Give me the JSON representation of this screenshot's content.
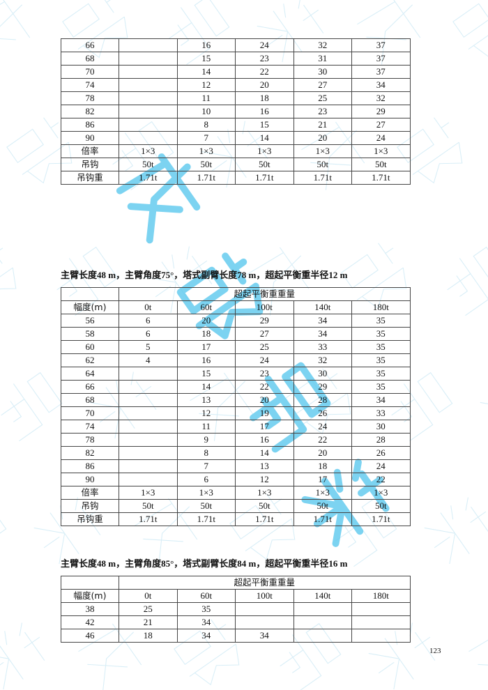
{
  "watermark": {
    "text": "成都吊装",
    "color": "#5cc8ee"
  },
  "tables": [
    {
      "title": "",
      "header": null,
      "rows": [
        [
          "66",
          "",
          "16",
          "24",
          "32",
          "37"
        ],
        [
          "68",
          "",
          "15",
          "23",
          "31",
          "37"
        ],
        [
          "70",
          "",
          "14",
          "22",
          "30",
          "37"
        ],
        [
          "74",
          "",
          "12",
          "20",
          "27",
          "34"
        ],
        [
          "78",
          "",
          "11",
          "18",
          "25",
          "32"
        ],
        [
          "82",
          "",
          "10",
          "16",
          "23",
          "29"
        ],
        [
          "86",
          "",
          "8",
          "15",
          "21",
          "27"
        ],
        [
          "90",
          "",
          "7",
          "14",
          "20",
          "24"
        ],
        [
          "倍率",
          "1×3",
          "1×3",
          "1×3",
          "1×3",
          "1×3"
        ],
        [
          "吊钩",
          "50t",
          "50t",
          "50t",
          "50t",
          "50t"
        ],
        [
          "吊钩重",
          "1.71t",
          "1.71t",
          "1.71t",
          "1.71t",
          "1.71t"
        ]
      ]
    },
    {
      "title": "主臂长度48 m，主臂角度75°，塔式副臂长度78 m，超起平衡重半径12 m",
      "header": {
        "group": "超起平衡重重量",
        "columns": [
          "幅度(m)",
          "0t",
          "60t",
          "100t",
          "140t",
          "180t"
        ]
      },
      "rows": [
        [
          "56",
          "6",
          "20",
          "29",
          "34",
          "35"
        ],
        [
          "58",
          "6",
          "18",
          "27",
          "34",
          "35"
        ],
        [
          "60",
          "5",
          "17",
          "25",
          "33",
          "35"
        ],
        [
          "62",
          "4",
          "16",
          "24",
          "32",
          "35"
        ],
        [
          "64",
          "",
          "15",
          "23",
          "30",
          "35"
        ],
        [
          "66",
          "",
          "14",
          "22",
          "29",
          "35"
        ],
        [
          "68",
          "",
          "13",
          "20",
          "28",
          "34"
        ],
        [
          "70",
          "",
          "12",
          "19",
          "26",
          "33"
        ],
        [
          "74",
          "",
          "11",
          "17",
          "24",
          "30"
        ],
        [
          "78",
          "",
          "9",
          "16",
          "22",
          "28"
        ],
        [
          "82",
          "",
          "8",
          "14",
          "20",
          "26"
        ],
        [
          "86",
          "",
          "7",
          "13",
          "18",
          "24"
        ],
        [
          "90",
          "",
          "6",
          "12",
          "17",
          "22"
        ],
        [
          "倍率",
          "1×3",
          "1×3",
          "1×3",
          "1×3",
          "1×3"
        ],
        [
          "吊钩",
          "50t",
          "50t",
          "50t",
          "50t",
          "50t"
        ],
        [
          "吊钩重",
          "1.71t",
          "1.71t",
          "1.71t",
          "1.71t",
          "1.71t"
        ]
      ]
    },
    {
      "title": "主臂长度48 m，主臂角度85°，塔式副臂长度84 m，超起平衡重半径16 m",
      "header": {
        "group": "超起平衡重重量",
        "columns": [
          "幅度(m)",
          "0t",
          "60t",
          "100t",
          "140t",
          "180t"
        ]
      },
      "rows": [
        [
          "38",
          "25",
          "35",
          "",
          "",
          ""
        ],
        [
          "42",
          "21",
          "34",
          "",
          "",
          ""
        ],
        [
          "46",
          "18",
          "34",
          "34",
          "",
          ""
        ]
      ]
    }
  ],
  "page_number": "123"
}
